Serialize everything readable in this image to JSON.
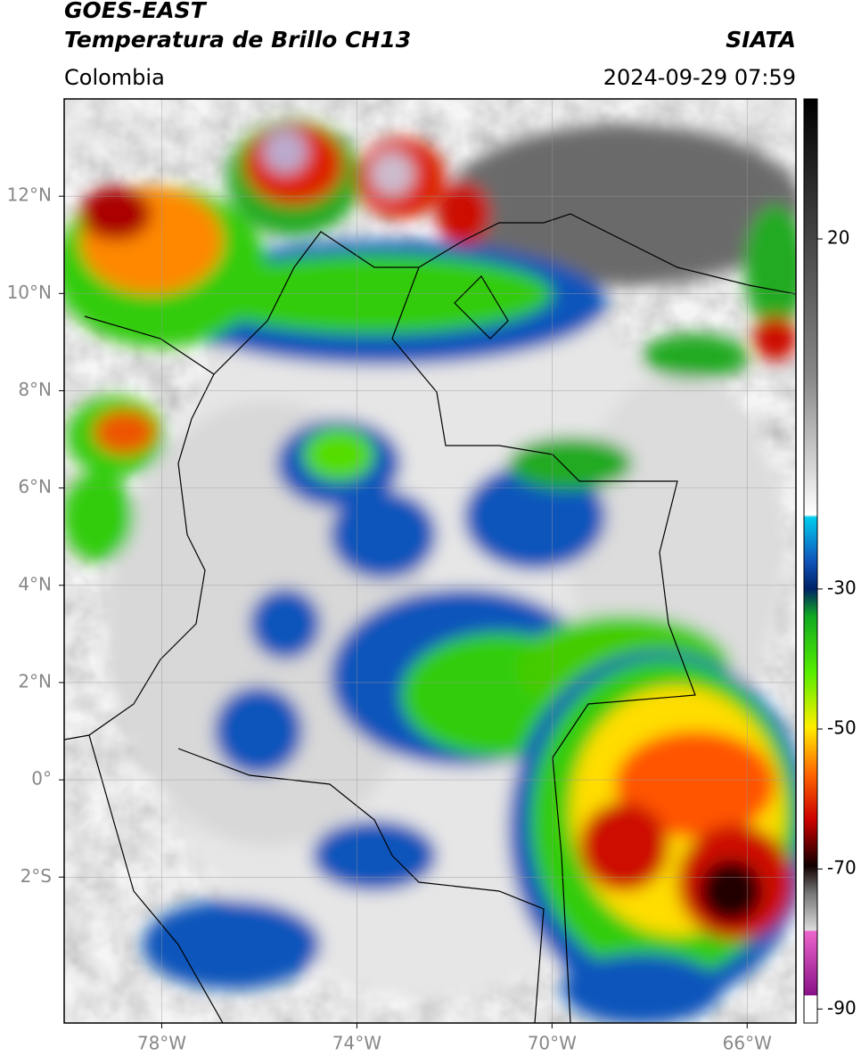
{
  "header": {
    "title": "GOES-EAST",
    "subtitle": "Temperatura de Brillo CH13",
    "source": "SIATA",
    "region": "Colombia",
    "timestamp": "2024-09-29 07:59"
  },
  "map": {
    "xlim": [
      -80,
      -65
    ],
    "ylim": [
      -5,
      14
    ],
    "xticks": [
      {
        "value": -78,
        "label": "78°W"
      },
      {
        "value": -74,
        "label": "74°W"
      },
      {
        "value": -70,
        "label": "70°W"
      },
      {
        "value": -66,
        "label": "66°W"
      }
    ],
    "yticks": [
      {
        "value": 12,
        "label": "12°N"
      },
      {
        "value": 10,
        "label": "10°N"
      },
      {
        "value": 8,
        "label": "8°N"
      },
      {
        "value": 6,
        "label": "6°N"
      },
      {
        "value": 4,
        "label": "4°N"
      },
      {
        "value": 2,
        "label": "2°N"
      },
      {
        "value": 0,
        "label": "0°"
      },
      {
        "value": -2,
        "label": "2°S"
      }
    ],
    "grid": true
  },
  "colorbar": {
    "lim": [
      -92,
      40
    ],
    "ticks": [
      20,
      -30,
      -50,
      -70,
      -90
    ]
  }
}
